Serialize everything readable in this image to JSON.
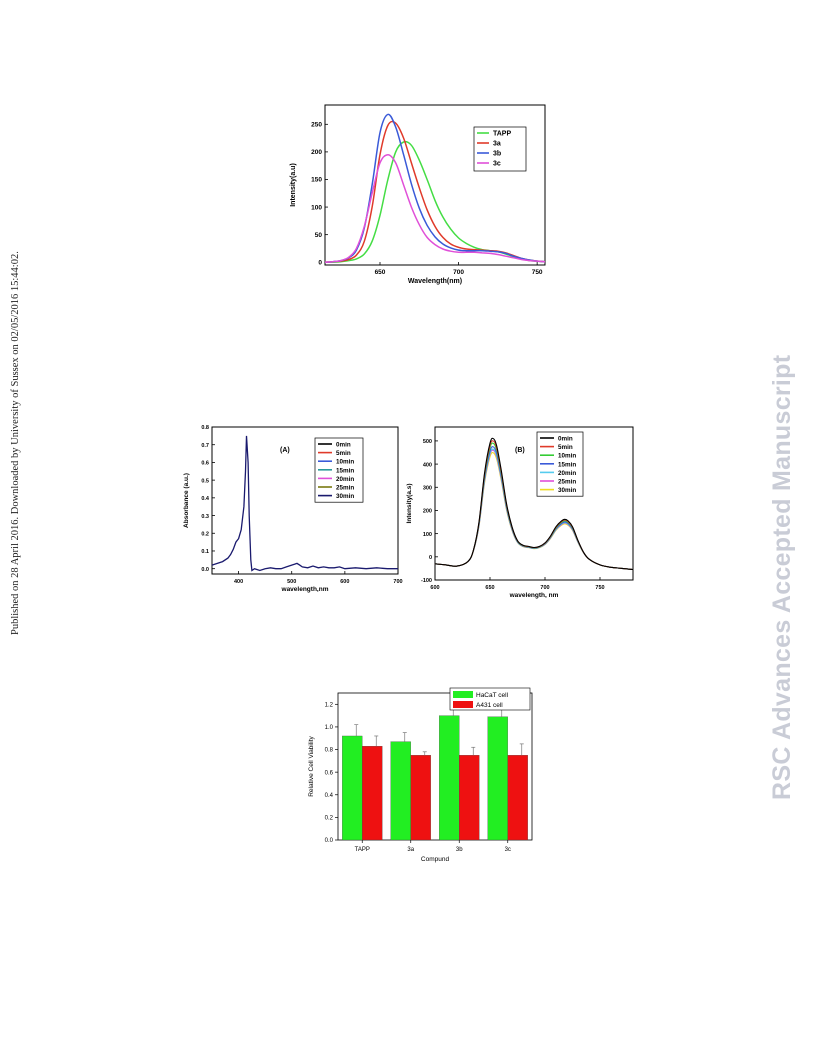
{
  "side_note": "Published on 28 April 2016. Downloaded by University of Sussex on 02/05/2016 15:44:02.",
  "watermark": "RSC Advances Accepted Manuscript",
  "colors": {
    "green": "#44dd44",
    "red": "#e03a2a",
    "blue": "#3a5ad8",
    "magenta": "#e050d8",
    "navy": "#1a1a6e",
    "bar_green": "#22ee22",
    "bar_red": "#ee1111"
  },
  "chart_data": [
    {
      "type": "line",
      "xlabel": "Wavelength(nm)",
      "ylabel": "Intensity(a.u)",
      "xlim": [
        615,
        755
      ],
      "ylim": [
        -5,
        285
      ],
      "xticks": [
        650,
        700,
        750
      ],
      "yticks": [
        0,
        50,
        100,
        150,
        200,
        250
      ],
      "legend_position": "top-right",
      "series": [
        {
          "name": "TAPP",
          "color": "#44dd44",
          "x": [
            615,
            620,
            625,
            630,
            635,
            640,
            645,
            650,
            655,
            660,
            665,
            670,
            675,
            680,
            685,
            690,
            695,
            700,
            705,
            710,
            715,
            720,
            725,
            730,
            735,
            740,
            745,
            750,
            755
          ],
          "y": [
            0,
            0,
            1,
            3,
            6,
            15,
            38,
            85,
            150,
            200,
            218,
            212,
            185,
            150,
            112,
            82,
            60,
            44,
            34,
            27,
            23,
            21,
            19,
            15,
            10,
            6,
            3,
            2,
            1
          ]
        },
        {
          "name": "3a",
          "color": "#e03a2a",
          "x": [
            615,
            620,
            625,
            630,
            635,
            640,
            645,
            650,
            655,
            660,
            665,
            670,
            675,
            680,
            685,
            690,
            695,
            700,
            705,
            710,
            715,
            720,
            725,
            730,
            735,
            740,
            745,
            750,
            755
          ],
          "y": [
            0,
            1,
            2,
            5,
            13,
            38,
            100,
            195,
            248,
            252,
            225,
            180,
            135,
            95,
            65,
            45,
            33,
            27,
            24,
            23,
            22,
            21,
            20,
            17,
            12,
            7,
            4,
            2,
            1
          ]
        },
        {
          "name": "3b",
          "color": "#3a5ad8",
          "x": [
            615,
            620,
            625,
            630,
            635,
            640,
            645,
            650,
            655,
            660,
            665,
            670,
            675,
            680,
            685,
            690,
            695,
            700,
            705,
            710,
            715,
            720,
            725,
            730,
            735,
            740,
            745,
            750,
            755
          ],
          "y": [
            0,
            1,
            3,
            8,
            22,
            62,
            140,
            235,
            268,
            245,
            195,
            142,
            98,
            67,
            46,
            33,
            26,
            22,
            21,
            21,
            21,
            20,
            19,
            16,
            11,
            7,
            4,
            2,
            1
          ]
        },
        {
          "name": "3c",
          "color": "#e050d8",
          "x": [
            615,
            620,
            625,
            630,
            635,
            640,
            645,
            650,
            655,
            660,
            665,
            670,
            675,
            680,
            685,
            690,
            695,
            700,
            705,
            710,
            715,
            720,
            725,
            730,
            735,
            740,
            745,
            750,
            755
          ],
          "y": [
            0,
            1,
            3,
            9,
            25,
            65,
            125,
            180,
            195,
            180,
            140,
            100,
            68,
            45,
            32,
            24,
            20,
            18,
            18,
            18,
            17,
            16,
            14,
            11,
            8,
            5,
            3,
            2,
            1
          ]
        }
      ]
    },
    {
      "type": "line",
      "panel_label": "(A)",
      "xlabel": "wavelength,nm",
      "ylabel": "Absorbance (a.u.)",
      "xlim": [
        350,
        700
      ],
      "ylim": [
        -0.03,
        0.8
      ],
      "xticks": [
        400,
        500,
        600,
        700
      ],
      "yticks": [
        0.0,
        0.1,
        0.2,
        0.3,
        0.4,
        0.5,
        0.6,
        0.7,
        0.8
      ],
      "legend_position": "top-right",
      "series": [
        {
          "name": "0min",
          "color": "#000000"
        },
        {
          "name": "5min",
          "color": "#e03a2a"
        },
        {
          "name": "10min",
          "color": "#3a5ad8"
        },
        {
          "name": "15min",
          "color": "#2a9a9a"
        },
        {
          "name": "20min",
          "color": "#e050d8"
        },
        {
          "name": "25min",
          "color": "#7a7a10"
        },
        {
          "name": "30min",
          "color": "#1a1a6e",
          "x": [
            350,
            360,
            370,
            380,
            385,
            390,
            395,
            400,
            405,
            410,
            413,
            415,
            418,
            420,
            423,
            425,
            430,
            440,
            450,
            460,
            470,
            480,
            490,
            500,
            505,
            510,
            515,
            520,
            530,
            540,
            550,
            560,
            570,
            580,
            590,
            600,
            620,
            640,
            660,
            680,
            700
          ],
          "y": [
            0.02,
            0.03,
            0.04,
            0.06,
            0.08,
            0.11,
            0.15,
            0.17,
            0.22,
            0.35,
            0.55,
            0.75,
            0.6,
            0.3,
            0.05,
            -0.01,
            0.0,
            -0.01,
            0.0,
            0.005,
            0.0,
            0.0,
            0.01,
            0.02,
            0.025,
            0.03,
            0.02,
            0.01,
            0.005,
            0.015,
            0.005,
            0.01,
            0.005,
            0.005,
            0.01,
            0.0,
            0.005,
            0.0,
            0.005,
            0.0,
            0.0
          ]
        }
      ]
    },
    {
      "type": "line",
      "panel_label": "(B)",
      "xlabel": "wavelength, nm",
      "ylabel": "Intensity(a.s)",
      "xlim": [
        600,
        780
      ],
      "ylim": [
        -100,
        560
      ],
      "xticks": [
        600,
        650,
        700,
        750
      ],
      "yticks": [
        -100,
        0,
        100,
        200,
        300,
        400,
        500
      ],
      "legend_position": "top-right",
      "x": [
        600,
        610,
        620,
        630,
        635,
        640,
        645,
        650,
        653,
        656,
        660,
        665,
        670,
        675,
        680,
        685,
        690,
        695,
        700,
        705,
        710,
        715,
        718,
        721,
        725,
        730,
        735,
        740,
        750,
        760,
        770,
        780
      ],
      "series": [
        {
          "name": "0min",
          "color": "#000000",
          "scale": 1.0
        },
        {
          "name": "5min",
          "color": "#e03a2a",
          "scale": 0.98
        },
        {
          "name": "10min",
          "color": "#33cc33",
          "scale": 0.96
        },
        {
          "name": "15min",
          "color": "#3a5ad8",
          "scale": 0.93
        },
        {
          "name": "20min",
          "color": "#55ccee",
          "scale": 0.91
        },
        {
          "name": "25min",
          "color": "#e050d8",
          "scale": 0.9
        },
        {
          "name": "30min",
          "color": "#eedd22",
          "scale": 0.88
        }
      ],
      "base_y": [
        -30,
        -35,
        -40,
        -20,
        30,
        150,
        360,
        490,
        510,
        480,
        380,
        230,
        130,
        70,
        50,
        45,
        40,
        45,
        60,
        90,
        130,
        155,
        162,
        155,
        130,
        70,
        20,
        -10,
        -35,
        -45,
        -50,
        -55
      ]
    },
    {
      "type": "bar",
      "xlabel": "Compund",
      "ylabel": "Relative Cell Viability",
      "ylim": [
        0,
        1.3
      ],
      "yticks": [
        0.0,
        0.2,
        0.4,
        0.6,
        0.8,
        1.0,
        1.2
      ],
      "categories": [
        "TAPP",
        "3a",
        "3b",
        "3c"
      ],
      "legend_position": "top-right",
      "series": [
        {
          "name": "HaCaT  cell",
          "color": "#22ee22",
          "values": [
            0.92,
            0.87,
            1.1,
            1.09
          ],
          "errors": [
            0.1,
            0.08,
            0.07,
            0.07
          ]
        },
        {
          "name": "A431   cell",
          "color": "#ee1111",
          "values": [
            0.83,
            0.75,
            0.75,
            0.75
          ],
          "errors": [
            0.09,
            0.03,
            0.07,
            0.1
          ]
        }
      ]
    }
  ]
}
